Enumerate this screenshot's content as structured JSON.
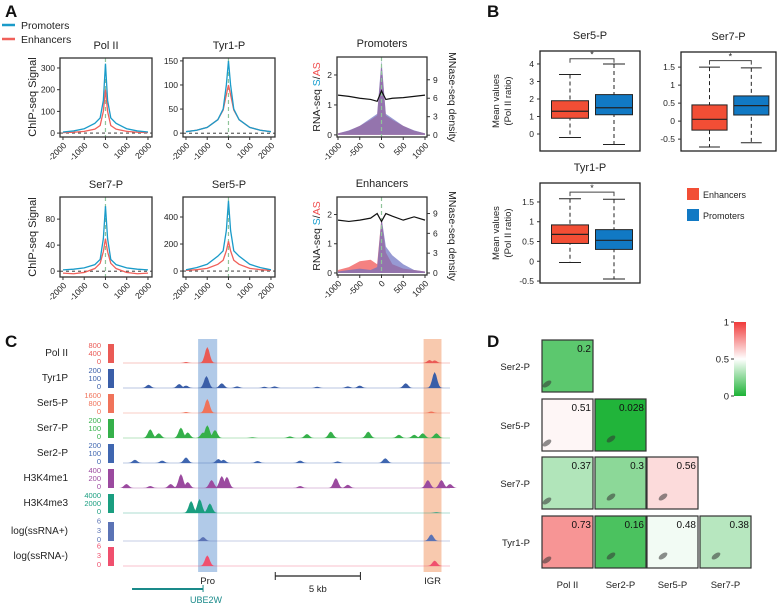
{
  "panel_labels": {
    "a": "A",
    "b": "B",
    "c": "C",
    "d": "D"
  },
  "chart_data": [
    {
      "panel": "A",
      "type": "line",
      "legend": [
        {
          "name": "Promoters",
          "color": "#1a9bc9"
        },
        {
          "name": "Enhancers",
          "color": "#f0605a"
        }
      ],
      "ylabel": "ChIP-seq Signal",
      "x": [
        -2000,
        -1500,
        -1000,
        -500,
        -250,
        -100,
        0,
        100,
        250,
        500,
        1000,
        1500,
        2000
      ],
      "xlim": [
        -2140,
        2190
      ],
      "xticks": [
        "-2000",
        "-1000",
        "0",
        "1000",
        "2000"
      ],
      "plots": [
        {
          "title": "Pol II",
          "ylim": [
            -18,
            346
          ],
          "yticks": [
            "0",
            "100",
            "200",
            "300"
          ],
          "promoters": [
            5,
            10,
            20,
            45,
            70,
            150,
            320,
            150,
            70,
            45,
            20,
            10,
            5
          ],
          "enhancers": [
            2,
            4,
            8,
            18,
            35,
            100,
            200,
            100,
            35,
            18,
            8,
            4,
            2
          ]
        },
        {
          "title": "Tyr1-P",
          "ylim": [
            -8,
            156
          ],
          "yticks": [
            "0",
            "50",
            "100",
            "150"
          ],
          "promoters": [
            3,
            6,
            12,
            28,
            50,
            100,
            150,
            100,
            50,
            28,
            12,
            6,
            3
          ],
          "enhancers": [
            3,
            6,
            12,
            28,
            48,
            80,
            100,
            80,
            48,
            28,
            12,
            6,
            3
          ]
        },
        {
          "title": "Ser7-P",
          "ylim": [
            -9,
            114
          ],
          "yticks": [
            "0",
            "40",
            "80"
          ],
          "promoters": [
            2,
            3,
            5,
            10,
            18,
            50,
            100,
            50,
            18,
            10,
            5,
            3,
            2
          ],
          "enhancers": [
            -3,
            -4,
            -2,
            4,
            12,
            30,
            50,
            30,
            12,
            4,
            -2,
            -4,
            -3
          ]
        },
        {
          "title": "Ser5-P",
          "ylim": [
            -44,
            548
          ],
          "yticks": [
            "0",
            "200",
            "400"
          ],
          "promoters": [
            10,
            25,
            50,
            110,
            150,
            300,
            520,
            300,
            150,
            110,
            50,
            25,
            10
          ],
          "enhancers": [
            5,
            10,
            20,
            50,
            80,
            150,
            220,
            150,
            80,
            50,
            20,
            10,
            5
          ]
        }
      ],
      "rna_plots": [
        {
          "title": "Promoters",
          "ylabel_prefix": "RNA-seq ",
          "ylabel_s": "S",
          "ylabel_sep": "/",
          "ylabel_as": "AS",
          "y2label": "MNase-seq density",
          "x": [
            -1000,
            -750,
            -500,
            -250,
            -100,
            0,
            100,
            250,
            500,
            750,
            1000
          ],
          "xlim": [
            -1023,
            1046
          ],
          "xticks": [
            "-1000",
            "-500",
            "0",
            "500",
            "1000"
          ],
          "ylim": [
            -0.07,
            2.6
          ],
          "yticks": [
            "0",
            "1",
            "2"
          ],
          "y2lim": [
            -0.3,
            12.7
          ],
          "y2ticks": [
            "0",
            "3",
            "6",
            "9"
          ],
          "s": [
            0.05,
            0.15,
            0.3,
            0.55,
            0.7,
            2.5,
            0.7,
            0.55,
            0.3,
            0.15,
            0.05
          ],
          "as": [
            0.05,
            0.14,
            0.3,
            0.5,
            0.65,
            2.4,
            0.65,
            0.5,
            0.3,
            0.14,
            0.05
          ],
          "mnase": [
            6.5,
            6.3,
            6.0,
            5.8,
            5.5,
            7.2,
            5.8,
            6.0,
            6.1,
            6.3,
            6.5
          ]
        },
        {
          "title": "Enhancers",
          "ylabel_prefix": "RNA-seq ",
          "ylabel_s": "S",
          "ylabel_sep": "/",
          "ylabel_as": "AS",
          "y2label": "MNase-seq density",
          "x": [
            -1000,
            -750,
            -500,
            -250,
            -100,
            0,
            100,
            250,
            500,
            750,
            1000
          ],
          "xlim": [
            -1023,
            1046
          ],
          "xticks": [
            "-1000",
            "-500",
            "0",
            "500",
            "1000"
          ],
          "ylim": [
            -0.07,
            2.6
          ],
          "yticks": [
            "0",
            "1",
            "2"
          ],
          "y2lim": [
            -0.3,
            11.5
          ],
          "y2ticks": [
            "0",
            "3",
            "6",
            "9"
          ],
          "s": [
            0.05,
            0.1,
            0.15,
            0.1,
            0.2,
            1.9,
            0.9,
            0.6,
            0.3,
            0.1,
            0.05
          ],
          "as": [
            0.1,
            0.2,
            0.4,
            0.45,
            0.3,
            1.9,
            0.7,
            0.3,
            0.15,
            0.1,
            0.05
          ],
          "mnase": [
            8.0,
            7.8,
            8.0,
            8.3,
            9.0,
            7.8,
            9.0,
            8.6,
            8.0,
            8.5,
            8.0
          ]
        }
      ]
    },
    {
      "panel": "B",
      "type": "box",
      "ylabel": [
        "Mean values",
        "(Pol II ratio)"
      ],
      "legend": [
        {
          "name": "Enhancers",
          "color": "#f24e35"
        },
        {
          "name": "Promoters",
          "color": "#1179c4"
        }
      ],
      "significance": "*",
      "plots": [
        {
          "title": "Ser5-P",
          "ylim": [
            -0.97,
            4.74
          ],
          "yticks": [
            "0",
            "1",
            "2",
            "3",
            "4"
          ],
          "bracket": 4.3,
          "enhancers": {
            "min": -0.2,
            "q1": 0.9,
            "median": 1.3,
            "q3": 1.9,
            "max": 3.4
          },
          "promoters": {
            "min": -0.6,
            "q1": 1.1,
            "median": 1.5,
            "q3": 2.25,
            "max": 4.0
          }
        },
        {
          "title": "Ser7-P",
          "ylim": [
            -0.83,
            1.92
          ],
          "yticks": [
            "-0.5",
            "0",
            "0.5",
            "1",
            "1.5"
          ],
          "bracket": 1.68,
          "enhancers": {
            "min": -0.72,
            "q1": -0.25,
            "median": 0.05,
            "q3": 0.45,
            "max": 1.5
          },
          "promoters": {
            "min": -0.6,
            "q1": 0.17,
            "median": 0.43,
            "q3": 0.7,
            "max": 1.48
          }
        },
        {
          "title": "Tyr1-P",
          "ylim": [
            -0.55,
            1.98
          ],
          "yticks": [
            "-0.5",
            "0",
            "0.5",
            "1",
            "1.5"
          ],
          "bracket": 1.75,
          "enhancers": {
            "min": -0.03,
            "q1": 0.45,
            "median": 0.68,
            "q3": 0.92,
            "max": 1.58
          },
          "promoters": {
            "min": -0.45,
            "q1": 0.3,
            "median": 0.53,
            "q3": 0.8,
            "max": 1.57
          }
        }
      ]
    },
    {
      "panel": "C",
      "type": "area",
      "xlim_kb": [
        0,
        19.2
      ],
      "tracks": [
        {
          "label": "Pol II",
          "color": "#ea5a55",
          "ticks": [
            "800",
            "400",
            "0"
          ],
          "peaks": [
            [
              3.7,
              50
            ],
            [
              4.95,
              800
            ],
            [
              18.0,
              150
            ],
            [
              18.3,
              130
            ]
          ]
        },
        {
          "label": "Tyr1P",
          "color": "#3a5ea8",
          "ticks": [
            "200",
            "100",
            "0"
          ],
          "peaks": [
            [
              1.5,
              40
            ],
            [
              3.3,
              50
            ],
            [
              3.7,
              30
            ],
            [
              4.9,
              150
            ],
            [
              5.8,
              60
            ],
            [
              6.7,
              20
            ],
            [
              8.3,
              15
            ],
            [
              8.9,
              20
            ],
            [
              11.4,
              15
            ],
            [
              13.2,
              20
            ],
            [
              13.9,
              30
            ],
            [
              16.6,
              60
            ],
            [
              18.3,
              200
            ]
          ]
        },
        {
          "label": "Ser5-P",
          "color": "#f0735a",
          "ticks": [
            "1600",
            "800",
            "0"
          ],
          "peaks": [
            [
              3.7,
              100
            ],
            [
              4.95,
              1400
            ],
            [
              18.1,
              150
            ]
          ]
        },
        {
          "label": "Ser7-P",
          "color": "#35b04a",
          "ticks": [
            "200",
            "100",
            "0"
          ],
          "peaks": [
            [
              1.6,
              110
            ],
            [
              2.1,
              60
            ],
            [
              3.4,
              130
            ],
            [
              3.8,
              70
            ],
            [
              4.7,
              70
            ],
            [
              4.95,
              160
            ],
            [
              5.4,
              100
            ],
            [
              7.6,
              10
            ],
            [
              9.8,
              20
            ],
            [
              10.8,
              50
            ],
            [
              12.2,
              80
            ],
            [
              14.4,
              80
            ],
            [
              16.2,
              40
            ],
            [
              17.1,
              40
            ],
            [
              17.6,
              60
            ],
            [
              18.4,
              60
            ]
          ]
        },
        {
          "label": "Ser2-P",
          "color": "#3f66b0",
          "ticks": [
            "200",
            "100",
            "0"
          ],
          "peaks": [
            [
              0.7,
              40
            ],
            [
              2.3,
              30
            ],
            [
              3.7,
              70
            ],
            [
              5.6,
              50
            ],
            [
              5.9,
              40
            ],
            [
              7.9,
              25
            ],
            [
              10.4,
              30
            ],
            [
              12.6,
              20
            ],
            [
              15.4,
              60
            ]
          ]
        },
        {
          "label": "H3K4me1",
          "color": "#9b4a9f",
          "ticks": [
            "400",
            "200",
            "0"
          ],
          "peaks": [
            [
              0.2,
              100
            ],
            [
              1.6,
              50
            ],
            [
              2.8,
              100
            ],
            [
              3.4,
              350
            ],
            [
              3.8,
              150
            ],
            [
              5.2,
              200
            ],
            [
              5.8,
              300
            ],
            [
              6.1,
              280
            ],
            [
              10.4,
              50
            ],
            [
              12.5,
              250
            ],
            [
              13.2,
              80
            ],
            [
              17.9,
              200
            ],
            [
              18.7,
              200
            ],
            [
              19.2,
              100
            ]
          ]
        },
        {
          "label": "H3K4me3",
          "color": "#1a9e80",
          "ticks": [
            "4000",
            "2000",
            "0"
          ],
          "peaks": [
            [
              4.0,
              3000
            ],
            [
              4.5,
              3500
            ],
            [
              5.1,
              2400
            ],
            [
              18.4,
              200
            ]
          ]
        },
        {
          "label": "log(ssRNA+)",
          "color": "#5b73b5",
          "ticks": [
            "6",
            "3",
            "0"
          ],
          "peaks": [
            [
              4.7,
              1.5
            ],
            [
              18.1,
              2.5
            ]
          ]
        },
        {
          "label": "log(ssRNA-)",
          "color": "#f0506e",
          "ticks": [
            "6",
            "3",
            "0"
          ],
          "peaks": [
            [
              4.95,
              4
            ],
            [
              18.3,
              2
            ]
          ]
        }
      ],
      "regions": [
        {
          "label": "Pro",
          "start": 4.41,
          "end": 5.53,
          "color": "#a8c4e6"
        },
        {
          "label": "IGR",
          "start": 17.65,
          "end": 18.7,
          "color": "#f7c3a5"
        }
      ],
      "scale_bar": {
        "label": "5 kb",
        "start": 8.94,
        "end": 13.94
      },
      "gene": {
        "name": "UBE2W",
        "start": 0.53,
        "end": 4.7,
        "color": "#1a8a8a"
      }
    },
    {
      "panel": "D",
      "type": "heatmap",
      "rows": [
        "Ser2-P",
        "Ser5-P",
        "Ser7-P",
        "Tyr1-P"
      ],
      "cols": [
        "Pol II",
        "Ser2-P",
        "Ser5-P",
        "Ser7-P"
      ],
      "values": [
        [
          0.2
        ],
        [
          0.51,
          0.028
        ],
        [
          0.37,
          0.3,
          0.56
        ],
        [
          0.73,
          0.16,
          0.48,
          0.38
        ]
      ],
      "colorbar": {
        "ticks": [
          "0",
          "0.5",
          "1"
        ],
        "low": "#1db336",
        "mid": "#ffffff",
        "high": "#f03a3a"
      }
    }
  ]
}
